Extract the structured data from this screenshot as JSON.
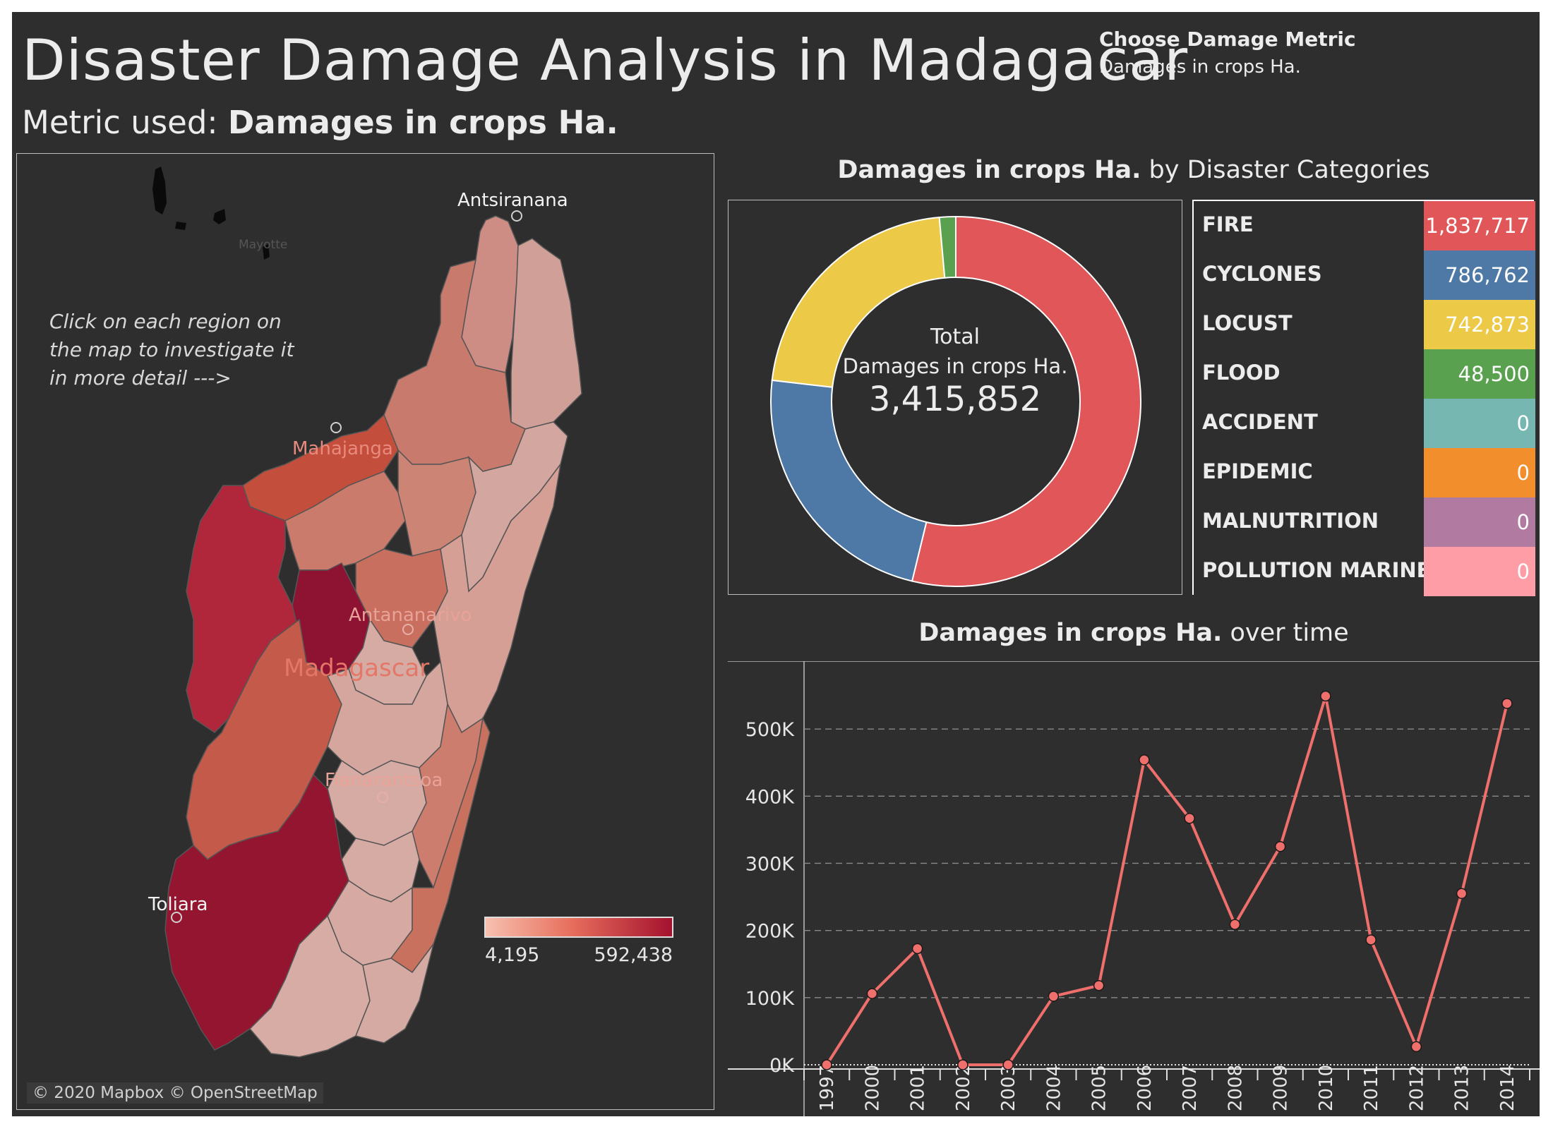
{
  "header": {
    "title": "Disaster Damage Analysis in Madagacar",
    "metric_prefix": "Metric used: ",
    "metric_value": "Damages in crops Ha.",
    "chooser_label": "Choose Damage Metric",
    "chooser_value": "Damages in crops Ha."
  },
  "map": {
    "hint_lines": [
      "Click on each region on",
      "the map to investigate it",
      "in more detail --->"
    ],
    "labels": {
      "antsiranana": "Antsiranana",
      "mayotte": "Mayotte",
      "mahajanga": "Mahajanga",
      "antananarivo": "Antananarivo",
      "madagascar": "Madagascar",
      "fianarantsoa": "Fianarantsoa",
      "toliara": "Toliara"
    },
    "legend": {
      "min": "4,195",
      "max": "592,438",
      "color_low": "#f7c1b0",
      "color_high": "#a3112e"
    },
    "attribution": "© 2020 Mapbox © OpenStreetMap"
  },
  "donut": {
    "title_bold": "Damages in crops Ha.",
    "title_rest": " by Disaster Categories",
    "center_label": "Total",
    "center_metric": "Damages in crops Ha.",
    "center_total": "3,415,852"
  },
  "categories": [
    {
      "name": "FIRE",
      "value": 1837717,
      "display": "1,837,717",
      "color": "#e15759"
    },
    {
      "name": "CYCLONES",
      "value": 786762,
      "display": "786,762",
      "color": "#4e79a7"
    },
    {
      "name": "LOCUST",
      "value": 742873,
      "display": "742,873",
      "color": "#edc948"
    },
    {
      "name": "FLOOD",
      "value": 48500,
      "display": "48,500",
      "color": "#59a14f"
    },
    {
      "name": "ACCIDENT",
      "value": 0,
      "display": "0",
      "color": "#76b7b2"
    },
    {
      "name": "EPIDEMIC",
      "value": 0,
      "display": "0",
      "color": "#f28e2b"
    },
    {
      "name": "MALNUTRITION",
      "value": 0,
      "display": "0",
      "color": "#b07aa1"
    },
    {
      "name": "POLLUTION MARINE",
      "value": 0,
      "display": "0",
      "color": "#ff9da7"
    }
  ],
  "chart_data": {
    "type": "line",
    "title_bold": "Damages in crops Ha.",
    "title_rest": " over time",
    "x": [
      "1997",
      "2000",
      "2001",
      "2002",
      "2003",
      "2004",
      "2005",
      "2006",
      "2007",
      "2008",
      "2009",
      "2010",
      "2011",
      "2012",
      "2013",
      "2014"
    ],
    "values": [
      0,
      106000,
      173000,
      0,
      0,
      102000,
      118000,
      454000,
      367000,
      209000,
      325000,
      549000,
      186000,
      27000,
      255000,
      538000
    ],
    "yticks": [
      0,
      100000,
      200000,
      300000,
      400000,
      500000
    ],
    "ytick_labels": [
      "0K",
      "100K",
      "200K",
      "300K",
      "400K",
      "500K"
    ],
    "ylim": [
      0,
      580000
    ],
    "line_color": "#ef6f6c",
    "grid": true
  }
}
